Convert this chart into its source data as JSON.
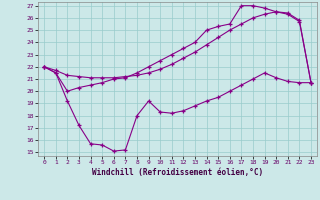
{
  "xlabel": "Windchill (Refroidissement éolien,°C)",
  "xlim": [
    -0.5,
    23.5
  ],
  "ylim": [
    14.7,
    27.3
  ],
  "xticks": [
    0,
    1,
    2,
    3,
    4,
    5,
    6,
    7,
    8,
    9,
    10,
    11,
    12,
    13,
    14,
    15,
    16,
    17,
    18,
    19,
    20,
    21,
    22,
    23
  ],
  "yticks": [
    15,
    16,
    17,
    18,
    19,
    20,
    21,
    22,
    23,
    24,
    25,
    26,
    27
  ],
  "bg_color": "#cce8e8",
  "line_color": "#880088",
  "line1_x": [
    0,
    1,
    2,
    3,
    4,
    5,
    6,
    7,
    8,
    9,
    10,
    11,
    12,
    13,
    14,
    15,
    16,
    17,
    18,
    19,
    20,
    21,
    22,
    23
  ],
  "line1_y": [
    22.0,
    21.7,
    21.3,
    21.2,
    21.1,
    21.1,
    21.1,
    21.2,
    21.3,
    21.5,
    21.8,
    22.2,
    22.7,
    23.2,
    23.8,
    24.4,
    25.0,
    25.5,
    26.0,
    26.3,
    26.5,
    26.4,
    25.8,
    20.7
  ],
  "line2_x": [
    0,
    1,
    2,
    3,
    4,
    5,
    6,
    7,
    8,
    9,
    10,
    11,
    12,
    13,
    14,
    15,
    16,
    17,
    18,
    19,
    20,
    21,
    22,
    23
  ],
  "line2_y": [
    22.0,
    21.5,
    19.2,
    17.2,
    15.7,
    15.6,
    15.1,
    15.2,
    18.0,
    19.2,
    18.3,
    18.2,
    18.4,
    18.8,
    19.2,
    19.5,
    20.0,
    20.5,
    21.0,
    21.5,
    21.1,
    20.8,
    20.7,
    20.7
  ],
  "line3_x": [
    0,
    1,
    2,
    3,
    4,
    5,
    6,
    7,
    8,
    9,
    10,
    11,
    12,
    13,
    14,
    15,
    16,
    17,
    18,
    19,
    20,
    21,
    22,
    23
  ],
  "line3_y": [
    22.0,
    21.5,
    20.0,
    20.3,
    20.5,
    20.7,
    21.0,
    21.1,
    21.5,
    22.0,
    22.5,
    23.0,
    23.5,
    24.0,
    25.0,
    25.3,
    25.5,
    27.0,
    27.0,
    26.8,
    26.5,
    26.3,
    25.7,
    20.7
  ]
}
